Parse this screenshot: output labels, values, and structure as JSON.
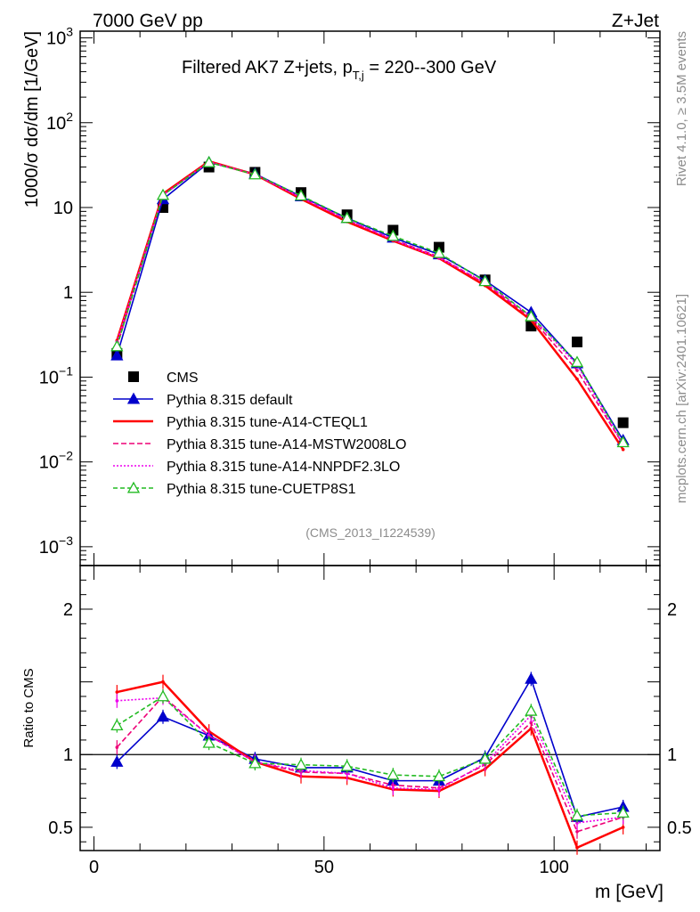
{
  "header": {
    "left": "7000 GeV pp",
    "right": "Z+Jet",
    "subtitle_main": "Filtered AK7 Z+jets, p",
    "subtitle_sub": "T,j",
    "subtitle_tail": " = 220--300 GeV"
  },
  "side": {
    "rivet": "Rivet 4.1.0, ≥ 3.5M events",
    "mcplots": "mcplots.cern.ch [arXiv:2401.10621]"
  },
  "analysis_id": "(CMS_2013_I1224539)",
  "colors": {
    "cms": "#000000",
    "default": "#0000cc",
    "cteql1": "#ff0000",
    "mstw": "#ee0077",
    "nnpdf": "#ee00ee",
    "cuetp8s1": "#22bb22"
  },
  "chart_data": [
    {
      "type": "line",
      "panel": "main",
      "ylabel": "1000/σ  dσ/dm [1/GeV]",
      "yscale": "log",
      "ylim": [
        0.0006,
        1200
      ],
      "xlim": [
        -3,
        123
      ],
      "y_ticks": [
        {
          "v": 0.001,
          "base": "10",
          "exp": "−3"
        },
        {
          "v": 0.01,
          "base": "10",
          "exp": "−2"
        },
        {
          "v": 0.1,
          "base": "10",
          "exp": "−1"
        },
        {
          "v": 1,
          "base": "1",
          "exp": ""
        },
        {
          "v": 10,
          "base": "10",
          "exp": ""
        },
        {
          "v": 100,
          "base": "10",
          "exp": "2"
        },
        {
          "v": 1000,
          "base": "10",
          "exp": "3"
        }
      ],
      "x": [
        5,
        15,
        25,
        35,
        45,
        55,
        65,
        75,
        85,
        95,
        105,
        115
      ],
      "series": [
        {
          "key": "cms",
          "name": "CMS",
          "marker": "square",
          "values": [
            0.19,
            10,
            30,
            26,
            15,
            8.2,
            5.4,
            3.4,
            1.4,
            0.4,
            0.26,
            0.029
          ]
        },
        {
          "key": "default",
          "name": "Pythia 8.315 default",
          "marker": "triangle-filled",
          "dash": "",
          "values": [
            0.18,
            12.5,
            34,
            25,
            13.5,
            7.5,
            4.4,
            2.8,
            1.38,
            0.58,
            0.145,
            0.018
          ]
        },
        {
          "key": "cteql1",
          "name": "Pythia 8.315 tune-A14-CTEQL1",
          "marker": "",
          "dash": "",
          "values": [
            0.27,
            14.5,
            35,
            24.5,
            12.6,
            6.8,
            4.05,
            2.52,
            1.2,
            0.47,
            0.095,
            0.014
          ]
        },
        {
          "key": "mstw",
          "name": "Pythia 8.315 tune-A14-MSTW2008LO",
          "marker": "",
          "dash": "6,3",
          "values": [
            0.23,
            14,
            34.5,
            24.5,
            13.0,
            7.1,
            4.2,
            2.62,
            1.27,
            0.5,
            0.12,
            0.016
          ]
        },
        {
          "key": "nnpdf",
          "name": "Pythia 8.315 tune-A14-NNPDF2.3LO",
          "marker": "",
          "dash": "2,2",
          "values": [
            0.26,
            14,
            34.5,
            24.5,
            13.2,
            7.2,
            4.15,
            2.55,
            1.3,
            0.52,
            0.14,
            0.016
          ]
        },
        {
          "key": "cuetp8s1",
          "name": "Pythia 8.315 tune-CUETP8S1",
          "marker": "triangle-open",
          "dash": "5,3",
          "values": [
            0.23,
            14,
            34,
            24.5,
            13.8,
            7.5,
            4.6,
            2.9,
            1.35,
            0.52,
            0.15,
            0.017
          ]
        }
      ]
    },
    {
      "type": "line",
      "panel": "ratio",
      "ylabel": "Ratio to CMS",
      "xlabel": "m [GeV]",
      "ylim": [
        0.34,
        2.3
      ],
      "xlim": [
        -3,
        123
      ],
      "y_ticks": [
        {
          "v": 0.5,
          "label": "0.5"
        },
        {
          "v": 1,
          "label": "1"
        },
        {
          "v": 2,
          "label": "2"
        }
      ],
      "x_ticks": [
        {
          "v": 0,
          "label": "0"
        },
        {
          "v": 50,
          "label": "50"
        },
        {
          "v": 100,
          "label": "100"
        }
      ],
      "x": [
        5,
        15,
        25,
        35,
        45,
        55,
        65,
        75,
        85,
        95,
        105,
        115
      ],
      "series": [
        {
          "key": "default",
          "values": [
            0.95,
            1.26,
            1.13,
            0.97,
            0.91,
            0.91,
            0.82,
            0.82,
            0.98,
            1.52,
            0.57,
            0.64
          ]
        },
        {
          "key": "cteql1",
          "values": [
            1.43,
            1.5,
            1.16,
            0.95,
            0.85,
            0.84,
            0.76,
            0.75,
            0.9,
            1.18,
            0.36,
            0.5
          ]
        },
        {
          "key": "mstw",
          "values": [
            1.05,
            1.4,
            1.13,
            0.95,
            0.88,
            0.87,
            0.79,
            0.77,
            0.93,
            1.22,
            0.47,
            0.57
          ]
        },
        {
          "key": "nnpdf",
          "values": [
            1.37,
            1.39,
            1.13,
            0.95,
            0.89,
            0.87,
            0.77,
            0.76,
            0.94,
            1.27,
            0.53,
            0.57
          ]
        },
        {
          "key": "cuetp8s1",
          "values": [
            1.2,
            1.4,
            1.08,
            0.94,
            0.93,
            0.92,
            0.86,
            0.85,
            0.97,
            1.3,
            0.58,
            0.6
          ]
        }
      ]
    }
  ]
}
